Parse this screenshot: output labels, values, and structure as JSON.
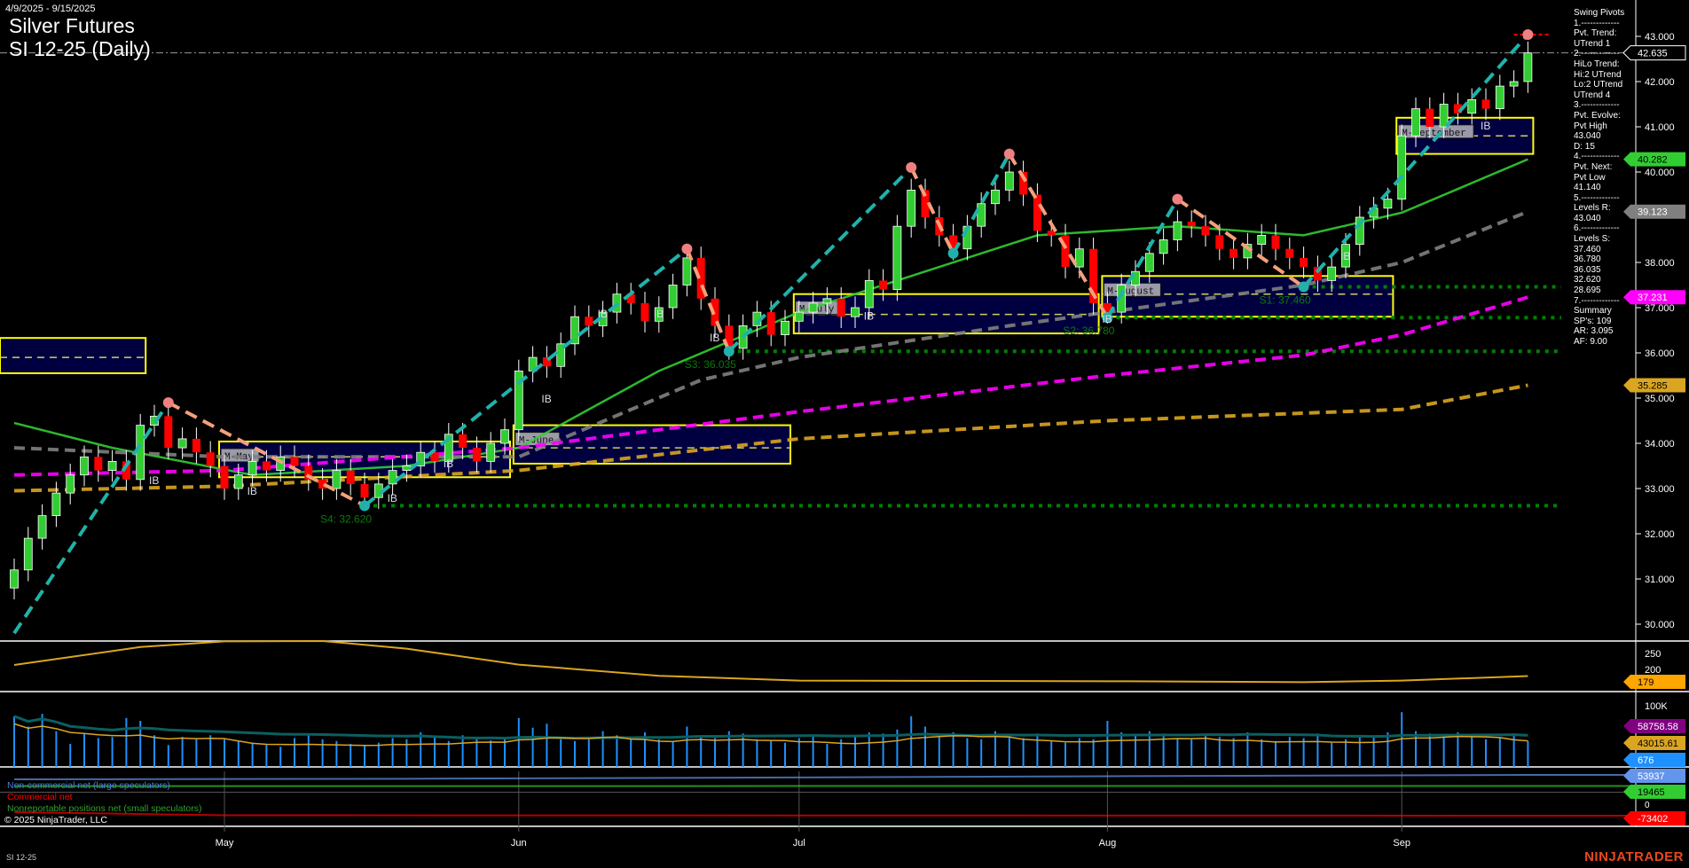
{
  "header": {
    "date_range": "4/9/2025 - 9/15/2025",
    "title_line1": "Silver Futures",
    "title_line2": "SI 12-25 (Daily)"
  },
  "info_panel": [
    "Swing Pivots",
    "1.-------------",
    "Pvt. Trend:",
    "UTrend 1",
    "2.-------------",
    "HiLo Trend:",
    "Hi:2 UTrend",
    "Lo:2 UTrend",
    "UTrend 4",
    "3.-------------",
    "Pvt. Evolve:",
    "Pvt High",
    "43.040",
    "D: 15",
    "4.-------------",
    "Pvt. Next:",
    "Pvt Low",
    "41.140",
    "5.-------------",
    "Levels R:",
    "43.040",
    "6.-------------",
    "Levels S:",
    "37.460",
    "36.780",
    "36.035",
    "32.620",
    "28.695",
    "7.-------------",
    "Summary",
    "SP's: 109",
    "AR: 3.095",
    "AF: 9.00"
  ],
  "legend": {
    "noncommercial": "Non-commercial net (large speculators)",
    "commercial": "Commercial net",
    "copyright": "© 2025 NinjaTrader, LLC",
    "nonreportable": "Nonreportable positions net (small speculators)"
  },
  "footer": {
    "instrument": "SI 12-25",
    "brand": "NINJATRADER"
  },
  "colors": {
    "up": "#32CD32",
    "down": "#FF0000",
    "swing_up": "#20B2AA",
    "swing_down": "#F4A07A",
    "ma_fast": "#32CD32",
    "ma_mid": "#808080",
    "ma_slow": "#FF00FF",
    "ma_long": "#DAA520",
    "support": "#008000",
    "box_fill": "#000040",
    "box_border": "#FFFF00",
    "volume": "#1E90FF"
  },
  "chart_data": {
    "type": "candlestick",
    "ylim": [
      29.6,
      43.8
    ],
    "y_ticks": [
      "43.000",
      "42.000",
      "41.000",
      "40.000",
      "38.000",
      "37.000",
      "36.000",
      "35.000",
      "34.000",
      "33.000",
      "32.000",
      "31.000",
      "30.000"
    ],
    "x_ticks": [
      {
        "label": "May",
        "date": "5/1"
      },
      {
        "label": "Jun",
        "date": "6/2"
      },
      {
        "label": "Jul",
        "date": "7/1"
      },
      {
        "label": "Aug",
        "date": "8/1"
      },
      {
        "label": "Sep",
        "date": "9/2"
      }
    ],
    "dates": [
      "4/9",
      "4/10",
      "4/11",
      "4/14",
      "4/15",
      "4/16",
      "4/17",
      "4/21",
      "4/22",
      "4/23",
      "4/24",
      "4/25",
      "4/28",
      "4/29",
      "4/30",
      "5/1",
      "5/2",
      "5/5",
      "5/6",
      "5/7",
      "5/8",
      "5/9",
      "5/12",
      "5/13",
      "5/14",
      "5/15",
      "5/16",
      "5/19",
      "5/20",
      "5/21",
      "5/22",
      "5/23",
      "5/27",
      "5/28",
      "5/29",
      "5/30",
      "6/2",
      "6/3",
      "6/4",
      "6/5",
      "6/6",
      "6/9",
      "6/10",
      "6/11",
      "6/12",
      "6/13",
      "6/16",
      "6/17",
      "6/18",
      "6/20",
      "6/23",
      "6/24",
      "6/25",
      "6/26",
      "6/27",
      "6/30",
      "7/1",
      "7/2",
      "7/3",
      "7/7",
      "7/8",
      "7/9",
      "7/10",
      "7/11",
      "7/14",
      "7/15",
      "7/16",
      "7/17",
      "7/18",
      "7/21",
      "7/22",
      "7/23",
      "7/24",
      "7/25",
      "7/28",
      "7/29",
      "7/30",
      "7/31",
      "8/1",
      "8/4",
      "8/5",
      "8/6",
      "8/7",
      "8/8",
      "8/11",
      "8/12",
      "8/13",
      "8/14",
      "8/15",
      "8/18",
      "8/19",
      "8/20",
      "8/21",
      "8/22",
      "8/25",
      "8/26",
      "8/27",
      "8/28",
      "8/29",
      "9/2",
      "9/3",
      "9/4",
      "9/5",
      "9/8",
      "9/9",
      "9/10",
      "9/11",
      "9/12",
      "9/15"
    ],
    "close": [
      31.2,
      31.9,
      32.4,
      32.9,
      33.3,
      33.7,
      33.4,
      33.6,
      33.2,
      34.4,
      34.6,
      33.9,
      34.1,
      33.8,
      33.5,
      33.0,
      33.3,
      33.6,
      33.4,
      33.7,
      33.5,
      33.2,
      33.0,
      33.4,
      33.1,
      32.8,
      33.1,
      33.4,
      33.5,
      33.8,
      33.6,
      34.2,
      33.9,
      33.6,
      34.0,
      34.3,
      35.6,
      35.9,
      35.7,
      36.2,
      36.8,
      36.6,
      36.9,
      37.3,
      37.1,
      36.7,
      37.0,
      37.5,
      38.1,
      37.2,
      36.6,
      36.1,
      36.6,
      36.9,
      36.4,
      36.7,
      36.9,
      37.1,
      37.2,
      36.8,
      37.0,
      37.6,
      37.4,
      38.8,
      39.6,
      39.0,
      38.6,
      38.3,
      38.8,
      39.3,
      39.6,
      40.0,
      39.5,
      38.7,
      38.6,
      37.9,
      38.3,
      37.1,
      36.9,
      37.5,
      37.8,
      38.2,
      38.5,
      38.9,
      38.8,
      38.6,
      38.3,
      38.1,
      38.4,
      38.6,
      38.3,
      38.1,
      37.9,
      37.6,
      37.9,
      38.4,
      39.0,
      39.2,
      39.4,
      40.8,
      41.4,
      41.0,
      41.5,
      41.3,
      41.6,
      41.4,
      41.9,
      42.0,
      42.635
    ],
    "volume_k": [
      88,
      70,
      92,
      62,
      40,
      58,
      50,
      52,
      85,
      80,
      55,
      38,
      52,
      50,
      55,
      48,
      45,
      42,
      40,
      35,
      50,
      55,
      48,
      45,
      40,
      38,
      42,
      50,
      48,
      60,
      52,
      45,
      55,
      50,
      46,
      48,
      85,
      68,
      75,
      50,
      45,
      48,
      62,
      55,
      52,
      60,
      48,
      45,
      70,
      55,
      50,
      62,
      58,
      48,
      45,
      42,
      50,
      55,
      40,
      48,
      52,
      60,
      58,
      65,
      88,
      70,
      55,
      60,
      50,
      48,
      62,
      55,
      50,
      58,
      45,
      42,
      50,
      48,
      80,
      60,
      55,
      62,
      58,
      50,
      48,
      55,
      52,
      50,
      60,
      48,
      45,
      52,
      50,
      58,
      42,
      48,
      55,
      52,
      60,
      95,
      62,
      58,
      55,
      60,
      52,
      48,
      50,
      58,
      45
    ],
    "last_price": 42.635,
    "resistance": 43.04,
    "swing_pivots": [
      {
        "date": "4/9",
        "price": 29.8
      },
      {
        "date": "4/25",
        "price": 34.9
      },
      {
        "date": "5/15",
        "price": 32.62
      },
      {
        "date": "6/18",
        "price": 38.3
      },
      {
        "date": "6/24",
        "price": 36.035
      },
      {
        "date": "7/14",
        "price": 40.1
      },
      {
        "date": "7/17",
        "price": 38.2
      },
      {
        "date": "7/23",
        "price": 40.4
      },
      {
        "date": "8/1",
        "price": 36.78
      },
      {
        "date": "8/8",
        "price": 39.4
      },
      {
        "date": "8/21",
        "price": 37.46
      },
      {
        "date": "9/15",
        "price": 43.04
      }
    ],
    "moving_averages": [
      {
        "color": "#32CD32",
        "last": "40.282",
        "points": [
          [
            "4/9",
            34.45
          ],
          [
            "4/21",
            33.9
          ],
          [
            "5/5",
            33.3
          ],
          [
            "5/20",
            33.5
          ],
          [
            "6/2",
            33.9
          ],
          [
            "6/16",
            35.6
          ],
          [
            "7/1",
            36.9
          ],
          [
            "7/15",
            37.8
          ],
          [
            "7/25",
            38.6
          ],
          [
            "8/8",
            38.8
          ],
          [
            "8/21",
            38.6
          ],
          [
            "9/2",
            39.1
          ],
          [
            "9/15",
            40.282
          ]
        ]
      },
      {
        "color": "#808080",
        "last": "39.123",
        "points": [
          [
            "4/9",
            33.9
          ],
          [
            "5/1",
            33.7
          ],
          [
            "6/2",
            33.7
          ],
          [
            "6/20",
            35.4
          ],
          [
            "7/1",
            35.9
          ],
          [
            "7/23",
            36.6
          ],
          [
            "8/1",
            36.9
          ],
          [
            "8/21",
            37.5
          ],
          [
            "9/2",
            38.0
          ],
          [
            "9/15",
            39.123
          ]
        ]
      },
      {
        "color": "#FF00FF",
        "last": "37.231",
        "points": [
          [
            "4/9",
            33.3
          ],
          [
            "5/1",
            33.4
          ],
          [
            "6/2",
            33.9
          ],
          [
            "7/1",
            34.7
          ],
          [
            "8/1",
            35.5
          ],
          [
            "8/21",
            35.95
          ],
          [
            "9/2",
            36.4
          ],
          [
            "9/15",
            37.231
          ]
        ]
      },
      {
        "color": "#DAA520",
        "last": "35.285",
        "points": [
          [
            "4/9",
            32.95
          ],
          [
            "5/1",
            33.05
          ],
          [
            "6/2",
            33.4
          ],
          [
            "7/1",
            34.1
          ],
          [
            "8/1",
            34.5
          ],
          [
            "9/2",
            34.75
          ],
          [
            "9/15",
            35.285
          ]
        ]
      }
    ],
    "monthly_boxes": [
      {
        "label": "",
        "start": "4/9",
        "end": "4/23",
        "top": 36.33,
        "bottom": 35.55,
        "mid": 35.9
      },
      {
        "label": "M-May",
        "start": "5/1",
        "end": "5/30",
        "top": 34.04,
        "bottom": 33.25,
        "mid": 33.7
      },
      {
        "label": "M-June",
        "start": "6/2",
        "end": "6/30",
        "top": 34.4,
        "bottom": 33.55,
        "mid": 33.9
      },
      {
        "label": "M-July",
        "start": "7/1",
        "end": "7/31",
        "top": 37.3,
        "bottom": 36.43,
        "mid": 36.85
      },
      {
        "label": "M-August",
        "start": "8/1",
        "end": "8/29",
        "top": 37.7,
        "bottom": 36.8,
        "mid": 37.3
      },
      {
        "label": "M-September",
        "start": "9/2",
        "end": "9/15",
        "top": 41.2,
        "bottom": 40.4,
        "mid": 40.8
      }
    ],
    "supports": [
      {
        "label": "S4: 32.620",
        "price": 32.62,
        "start": "5/15"
      },
      {
        "label": "S3: 36.035",
        "price": 36.035,
        "start": "6/24"
      },
      {
        "label": "S2: 36.780",
        "price": 36.78,
        "start": "8/1"
      },
      {
        "label": "S1: 37.460",
        "price": 37.46,
        "start": "8/21"
      }
    ],
    "ib_labels": [
      {
        "text": "IB",
        "date": "4/24",
        "price": 33.2
      },
      {
        "text": "IB",
        "date": "5/5",
        "price": 32.96
      },
      {
        "text": "IB",
        "date": "5/19",
        "price": 32.8
      },
      {
        "text": "IB",
        "date": "5/23",
        "price": 33.57
      },
      {
        "text": "IB",
        "date": "6/4",
        "price": 35.0
      },
      {
        "text": "IB",
        "date": "6/10",
        "price": 36.88
      },
      {
        "text": "IB",
        "date": "6/16",
        "price": 36.88
      },
      {
        "text": "IB",
        "date": "6/23",
        "price": 36.35
      },
      {
        "text": "IB",
        "date": "7/9",
        "price": 36.83
      },
      {
        "text": "IB",
        "date": "8/1",
        "price": 36.76
      },
      {
        "text": "IB",
        "date": "8/26",
        "price": 38.16
      },
      {
        "text": "IB",
        "date": "9/10",
        "price": 41.04
      }
    ],
    "indicator": {
      "ticks": [
        "250",
        "200"
      ],
      "last": "179",
      "points": [
        [
          "4/9",
          214
        ],
        [
          "4/23",
          270
        ],
        [
          "5/1",
          288
        ],
        [
          "5/12",
          289
        ],
        [
          "5/20",
          265
        ],
        [
          "6/2",
          215
        ],
        [
          "6/16",
          180
        ],
        [
          "7/1",
          165
        ],
        [
          "8/1",
          163
        ],
        [
          "8/21",
          160
        ],
        [
          "9/2",
          165
        ],
        [
          "9/15",
          179
        ]
      ]
    },
    "volume_panel": {
      "tick": "100K",
      "labels": [
        {
          "text": "58758.58",
          "color": "#800080"
        },
        {
          "text": "43015.61",
          "color": "#DAA520"
        },
        {
          "text": "676",
          "color": "#1E90FF"
        }
      ]
    },
    "cot": {
      "tick": "0",
      "series": [
        {
          "name": "Non-commercial net (large speculators)",
          "color": "#6495ED",
          "last": "53937",
          "points": [
            [
              "4/9",
              40000
            ],
            [
              "5/20",
              42000
            ],
            [
              "7/1",
              46000
            ],
            [
              "8/1",
              50000
            ],
            [
              "9/15",
              53937
            ]
          ]
        },
        {
          "name": "Nonreportable positions net (small speculators)",
          "color": "#32CD32",
          "last": "19465",
          "points": [
            [
              "4/9",
              19000
            ],
            [
              "9/15",
              19465
            ]
          ]
        },
        {
          "name": "Commercial net",
          "color": "#FF0000",
          "last": "-73402",
          "points": [
            [
              "4/9",
              -62000
            ],
            [
              "5/1",
              -72000
            ],
            [
              "9/15",
              -73402
            ]
          ]
        }
      ]
    }
  }
}
